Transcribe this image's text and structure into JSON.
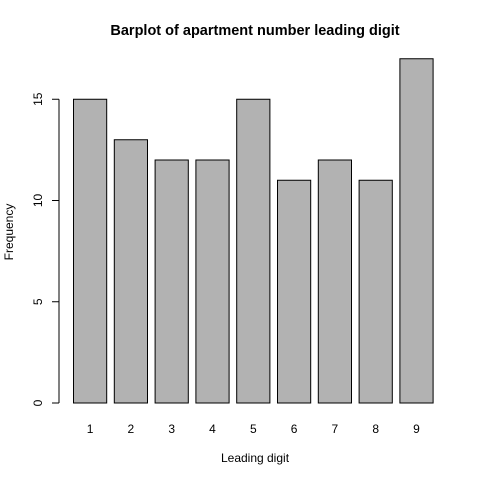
{
  "chart_data": {
    "type": "bar",
    "title": "Barplot of apartment number leading digit",
    "xlabel": "Leading digit",
    "ylabel": "Frequency",
    "categories": [
      "1",
      "2",
      "3",
      "4",
      "5",
      "6",
      "7",
      "8",
      "9"
    ],
    "values": [
      15,
      13,
      12,
      12,
      15,
      11,
      12,
      11,
      17
    ],
    "ylim": [
      0,
      17
    ],
    "yticks": [
      "0",
      "5",
      "10",
      "15"
    ],
    "bar_color": "#b2b2b2",
    "grid": false,
    "legend": "none"
  }
}
